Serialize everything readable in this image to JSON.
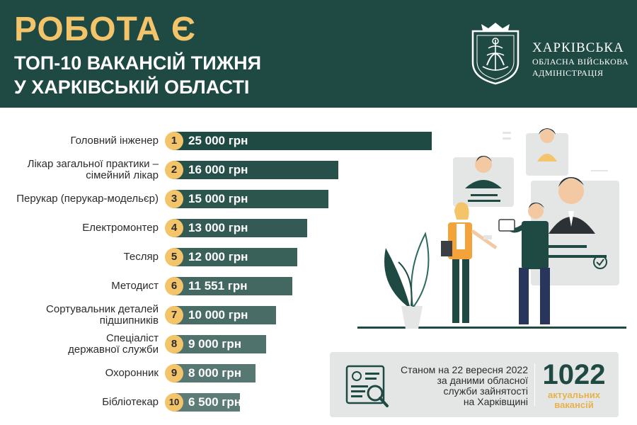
{
  "header": {
    "title": "РОБОТА Є",
    "subtitle_lines": [
      "ТОП-10 ВАКАНСІЙ ТИЖНЯ",
      "У ХАРКІВСЬКІЙ ОБЛАСТІ"
    ],
    "org_lines": [
      "ХАРКІВСЬКА",
      "ОБЛАСНА ВІЙСЬКОВА",
      "АДМІНІСТРАЦІЯ"
    ],
    "emblem_icon": "kharkiv-region-coat-of-arms-icon"
  },
  "chart_data": {
    "type": "bar",
    "orientation": "horizontal",
    "unit": "грн",
    "categories": [
      "Головний інженер",
      "Лікар загальної практики – сімейний лікар",
      "Перукар (перукар-модельєр)",
      "Електромонтер",
      "Тесляр",
      "Методист",
      "Сортувальник деталей підшипників",
      "Спеціаліст державної служби",
      "Охоронник",
      "Бібліотекар"
    ],
    "values": [
      25000,
      16000,
      15000,
      13000,
      12000,
      11551,
      10000,
      9000,
      8000,
      6500
    ],
    "bar_color": "#1f4a43",
    "badge_color": "#f4c46b"
  },
  "ranking": {
    "items": [
      {
        "rank": "1",
        "label_lines": [
          "Головний інженер"
        ],
        "salary": "25 000 грн",
        "value": 25000
      },
      {
        "rank": "2",
        "label_lines": [
          "Лікар загальної практики –",
          "сімейний лікар"
        ],
        "salary": "16 000 грн",
        "value": 16000
      },
      {
        "rank": "3",
        "label_lines": [
          "Перукар (перукар-модельєр)"
        ],
        "salary": "15 000 грн",
        "value": 15000
      },
      {
        "rank": "4",
        "label_lines": [
          "Електромонтер"
        ],
        "salary": "13 000 грн",
        "value": 13000
      },
      {
        "rank": "5",
        "label_lines": [
          "Тесляр"
        ],
        "salary": "12 000 грн",
        "value": 12000
      },
      {
        "rank": "6",
        "label_lines": [
          "Методист"
        ],
        "salary": "11 551 грн",
        "value": 11551
      },
      {
        "rank": "7",
        "label_lines": [
          "Сортувальник деталей",
          "підшипників"
        ],
        "salary": "10 000 грн",
        "value": 10000
      },
      {
        "rank": "8",
        "label_lines": [
          "Спеціаліст",
          "державної служби"
        ],
        "salary": "9 000 грн",
        "value": 9000
      },
      {
        "rank": "9",
        "label_lines": [
          "Охоронник"
        ],
        "salary": "8 000 грн",
        "value": 8000
      },
      {
        "rank": "10",
        "label_lines": [
          "Бібліотекар"
        ],
        "salary": "6 500 грн",
        "value": 6500
      }
    ]
  },
  "stats": {
    "text_lines": [
      "Станом на 22 вересня 2022",
      "за даними обласної",
      "служби зайнятості",
      "на Харківщині"
    ],
    "number": "1022",
    "label_lines": [
      "актуальних",
      "вакансій"
    ],
    "icon": "resume-search-icon"
  },
  "illustration": {
    "icon": "recruitment-people-illustration"
  },
  "colors": {
    "primary": "#1f4a43",
    "accent": "#f4c46b",
    "panel": "#e4e6e5"
  }
}
